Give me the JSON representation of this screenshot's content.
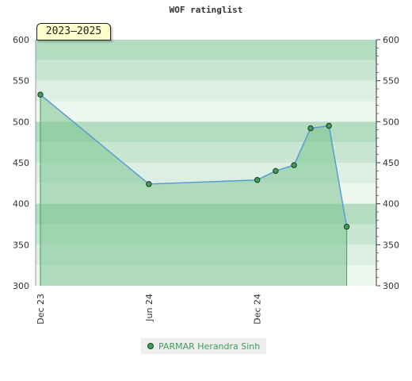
{
  "title": "WOF ratinglist",
  "period_badge": "2023–2025",
  "colors": {
    "area_fill": "#7cc48f",
    "line": "#5b9bd5",
    "marker_fill": "#3ca05c",
    "band_dark": "#b3dcc1",
    "band_mid": "#c8e6d2",
    "band_light": "#dcefe2",
    "band_lightest": "#eef7f0"
  },
  "chart_data": {
    "type": "area",
    "title": "WOF ratinglist",
    "xlabel": "",
    "ylabel": "",
    "ylim": [
      300,
      600
    ],
    "y_ticks": [
      300,
      350,
      400,
      450,
      500,
      550,
      600
    ],
    "x_tick_labels": [
      {
        "label": "Dec 23",
        "date": "2023-12-01"
      },
      {
        "label": "Jun 24",
        "date": "2024-06-01"
      },
      {
        "label": "Dec 24",
        "date": "2024-12-01"
      }
    ],
    "x_range": [
      "2023-11-23",
      "2025-06-20"
    ],
    "grid": true,
    "legend_position": "bottom-center",
    "series": [
      {
        "name": "PARMAR Herandra Sinh",
        "points": [
          {
            "x": "2023-12-01",
            "y": 533
          },
          {
            "x": "2024-06-01",
            "y": 424
          },
          {
            "x": "2024-12-01",
            "y": 429
          },
          {
            "x": "2025-01-01",
            "y": 440
          },
          {
            "x": "2025-02-01",
            "y": 447
          },
          {
            "x": "2025-03-01",
            "y": 492
          },
          {
            "x": "2025-04-01",
            "y": 495
          },
          {
            "x": "2025-05-01",
            "y": 372
          }
        ]
      }
    ]
  }
}
